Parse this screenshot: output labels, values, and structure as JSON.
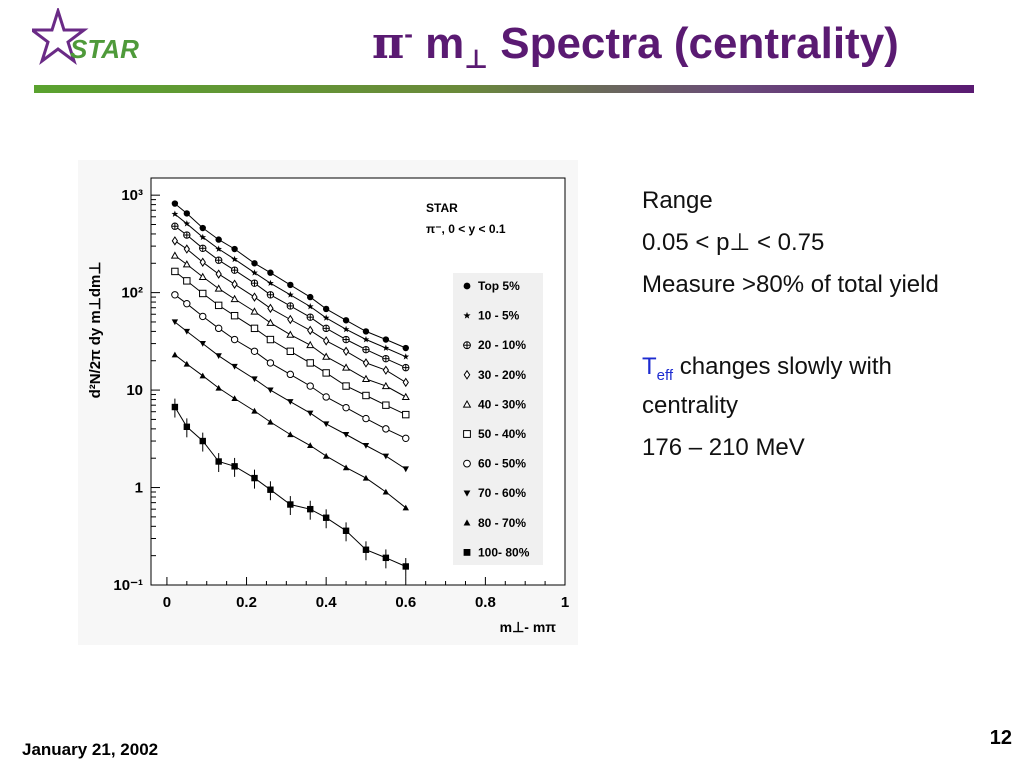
{
  "header": {
    "logo_text": "STAR",
    "title_pi": "π",
    "title_minus": "-",
    "title_m": " m",
    "title_perp": "⊥",
    "title_rest": " Spectra (centrality)"
  },
  "colors": {
    "title": "#5a1a72",
    "rule_start": "#5aa22f",
    "rule_end": "#5a1a72",
    "teff": "#1d2bd0"
  },
  "notes": {
    "range_label": "Range",
    "pt_range": "0.05 < p⊥ < 0.75",
    "measure": "Measure >80% of total yield",
    "teff_T": "T",
    "teff_sub": "eff",
    "teff_rest": " changes slowly with centrality",
    "temp_range": "176 – 210 MeV"
  },
  "footer": {
    "date": "January 21, 2002",
    "page": "12"
  },
  "chart_data": {
    "type": "scatter",
    "title": "",
    "annotation_1": "STAR",
    "annotation_2": "π⁻, 0 < y < 0.1",
    "ylabel": "d²N/2π dy m⊥dm⊥",
    "xlabel": "m⊥- mπ",
    "xlim": [
      -0.04,
      1.0
    ],
    "ylim": [
      0.1,
      1500
    ],
    "yscale": "log",
    "x_ticks": [
      "0",
      "0.2",
      "0.4",
      "0.6",
      "0.8",
      "1"
    ],
    "x_tick_values": [
      0,
      0.2,
      0.4,
      0.6,
      0.8,
      1
    ],
    "y_ticks": [
      "10⁻¹",
      "1",
      "10",
      "10²",
      "10³"
    ],
    "y_tick_values": [
      0.1,
      1,
      10,
      100,
      1000
    ],
    "legend_position": "right",
    "x": [
      0.02,
      0.05,
      0.09,
      0.13,
      0.17,
      0.22,
      0.26,
      0.31,
      0.36,
      0.4,
      0.45,
      0.5,
      0.55,
      0.6
    ],
    "series": [
      {
        "name": "Top 5%",
        "marker": "circle",
        "values": [
          820,
          650,
          460,
          350,
          280,
          200,
          160,
          120,
          90,
          68,
          52,
          40,
          33,
          27
        ]
      },
      {
        "name": "10 - 5%",
        "marker": "star",
        "values": [
          640,
          510,
          370,
          280,
          220,
          160,
          125,
          95,
          72,
          55,
          42,
          33,
          27,
          22
        ]
      },
      {
        "name": "20 - 10%",
        "marker": "crossed-circle",
        "values": [
          480,
          390,
          285,
          215,
          170,
          125,
          95,
          73,
          56,
          43,
          33,
          26,
          21,
          17
        ]
      },
      {
        "name": "30 - 20%",
        "marker": "diamond-open",
        "values": [
          340,
          280,
          205,
          155,
          122,
          90,
          69,
          53,
          41,
          32,
          25,
          19,
          16,
          12
        ]
      },
      {
        "name": "40 - 30%",
        "marker": "triangle-open",
        "values": [
          240,
          195,
          145,
          110,
          86,
          64,
          49,
          37,
          29,
          22,
          17,
          13,
          11,
          8.5
        ]
      },
      {
        "name": "50 - 40%",
        "marker": "square-open",
        "values": [
          165,
          132,
          98,
          74,
          58,
          43,
          33,
          25,
          19,
          15,
          11,
          8.8,
          7,
          5.6
        ]
      },
      {
        "name": "60 - 50%",
        "marker": "circle-open",
        "values": [
          95,
          77,
          57,
          43,
          33,
          25,
          19,
          14.5,
          11,
          8.5,
          6.6,
          5.1,
          4,
          3.2
        ]
      },
      {
        "name": "70 - 60%",
        "marker": "triangle-down",
        "values": [
          50,
          40,
          30,
          22.5,
          17.5,
          13,
          10,
          7.6,
          5.8,
          4.5,
          3.5,
          2.7,
          2.1,
          1.55
        ]
      },
      {
        "name": "80 - 70%",
        "marker": "triangle",
        "values": [
          23,
          18.5,
          14,
          10.5,
          8.2,
          6.1,
          4.7,
          3.5,
          2.7,
          2.1,
          1.6,
          1.25,
          0.9,
          0.62
        ]
      },
      {
        "name": "100- 80%",
        "marker": "square",
        "values": [
          6.7,
          4.2,
          3.0,
          1.85,
          1.65,
          1.25,
          0.95,
          0.67,
          0.6,
          0.49,
          0.36,
          0.23,
          0.19,
          0.155
        ]
      }
    ]
  }
}
